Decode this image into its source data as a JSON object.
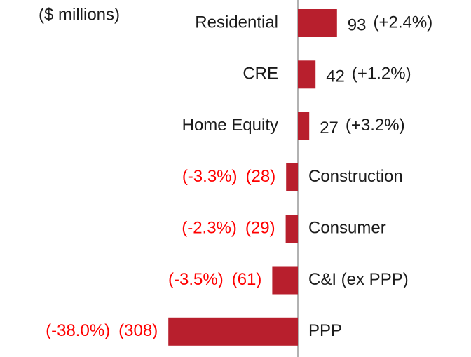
{
  "chart_data": {
    "type": "hbar",
    "subtitle": "($ millions)",
    "categories": [
      "Residential",
      "CRE",
      "Home Equity",
      "Construction",
      "Consumer",
      "C&I (ex PPP)",
      "PPP"
    ],
    "values": [
      93,
      42,
      27,
      -28,
      -29,
      -61,
      -308
    ],
    "value_labels": [
      "93",
      "42",
      "27",
      "(28)",
      "(29)",
      "(61)",
      "(308)"
    ],
    "change_labels": [
      "(+2.4%)",
      "(+1.2%)",
      "(+3.2%)",
      "(-3.3%)",
      "(-2.3%)",
      "(-3.5%)",
      "(-38.0%)"
    ],
    "color": "#b81f2d",
    "negative_label_color": "#ff0000",
    "xlim": [
      -400,
      400
    ]
  }
}
